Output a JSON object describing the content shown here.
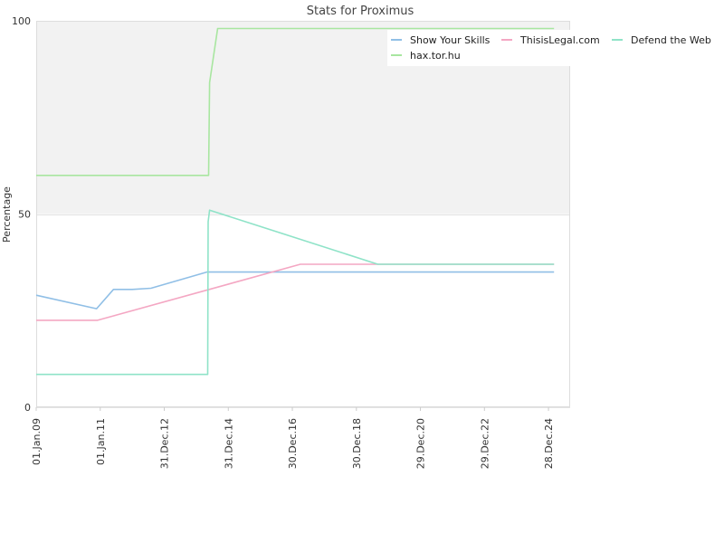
{
  "chart_data": {
    "type": "line",
    "title": "Stats for Proximus",
    "ylabel": "Percentage",
    "xlabel": "",
    "ylim": [
      0,
      100
    ],
    "yticks": [
      0,
      50,
      100
    ],
    "xlim": [
      "2009-01-01",
      "2025-09-01"
    ],
    "xticks": [
      {
        "date": "2009-01-01",
        "label": "01.Jan.09"
      },
      {
        "date": "2011-01-01",
        "label": "01.Jan.11"
      },
      {
        "date": "2012-12-31",
        "label": "31.Dec.12"
      },
      {
        "date": "2014-12-31",
        "label": "31.Dec.14"
      },
      {
        "date": "2016-12-30",
        "label": "30.Dec.16"
      },
      {
        "date": "2018-12-30",
        "label": "30.Dec.18"
      },
      {
        "date": "2020-12-29",
        "label": "29.Dec.20"
      },
      {
        "date": "2022-12-29",
        "label": "29.Dec.22"
      },
      {
        "date": "2024-12-28",
        "label": "28.Dec.24"
      }
    ],
    "band": {
      "from": 50,
      "to": 100,
      "color": "#f2f2f2"
    },
    "grid": true,
    "legend_position": "top-right",
    "series": [
      {
        "name": "Show Your Skills",
        "color": "#90bfe6",
        "points": [
          [
            "2009-01-01",
            29
          ],
          [
            "2010-11-20",
            25.5
          ],
          [
            "2011-06-01",
            30.5
          ],
          [
            "2012-01-01",
            30.5
          ],
          [
            "2012-08-01",
            30.8
          ],
          [
            "2014-05-01",
            35
          ],
          [
            "2025-03-01",
            35
          ]
        ]
      },
      {
        "name": "ThisisLegal.com",
        "color": "#f4a7c3",
        "points": [
          [
            "2009-01-01",
            22.5
          ],
          [
            "2010-12-01",
            22.5
          ],
          [
            "2017-04-01",
            37
          ],
          [
            "2025-03-01",
            37
          ]
        ]
      },
      {
        "name": "Defend the Web",
        "color": "#8fe3c8",
        "points": [
          [
            "2009-01-01",
            8.5
          ],
          [
            "2014-05-10",
            8.5
          ],
          [
            "2014-05-15",
            48
          ],
          [
            "2014-06-01",
            51
          ],
          [
            "2019-09-01",
            37
          ],
          [
            "2025-03-01",
            37
          ]
        ]
      },
      {
        "name": "hax.tor.hu",
        "color": "#a8e6a0",
        "points": [
          [
            "2009-01-01",
            60
          ],
          [
            "2014-05-20",
            60
          ],
          [
            "2014-06-01",
            84
          ],
          [
            "2014-09-01",
            98
          ],
          [
            "2025-03-01",
            98
          ]
        ]
      }
    ]
  }
}
